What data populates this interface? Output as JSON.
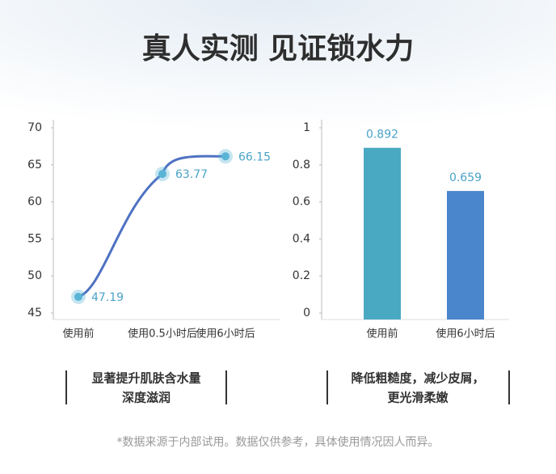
{
  "title": "真人实测  见证锁水力",
  "chart_data": [
    {
      "type": "line",
      "categories": [
        "使用前",
        "使用0.5小时后",
        "使用6小时后"
      ],
      "values": [
        47.19,
        63.77,
        66.15
      ],
      "color": "#4f72c2",
      "point_color": "#5ab4d6",
      "ylim": [
        45,
        70
      ],
      "yticks": [
        45,
        50,
        55,
        60,
        65,
        70
      ],
      "caption": [
        "显著提升肌肤含水量",
        "深度滋润"
      ]
    },
    {
      "type": "bar",
      "categories": [
        "使用前",
        "使用6小时后"
      ],
      "values": [
        0.892,
        0.659
      ],
      "colors": [
        "#4aa9c2",
        "#4a86cc"
      ],
      "ylim": [
        0,
        1
      ],
      "yticks": [
        0,
        0.2,
        0.4,
        0.6,
        0.8,
        1
      ],
      "caption": [
        "降低粗糙度，减少皮屑，",
        "更光滑柔嫩"
      ]
    }
  ],
  "footnote": "*数据来源于内部试用。数据仅供参考，具体使用情况因人而异。"
}
